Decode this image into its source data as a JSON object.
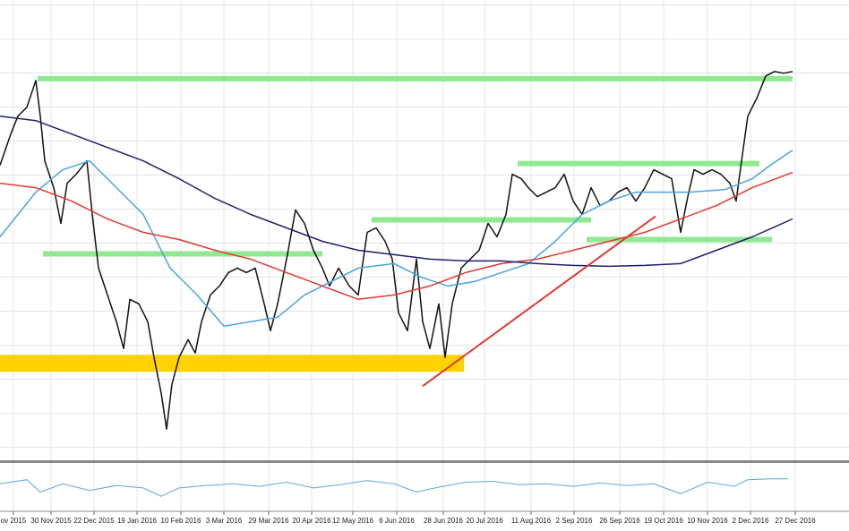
{
  "chart_data": {
    "type": "line",
    "xlim": [
      0,
      94.8
    ],
    "ylim": [
      0,
      103
    ],
    "grid": true,
    "xticks": [
      {
        "value": 1.5,
        "label": "ov 2015"
      },
      {
        "value": 5.7,
        "label": "30 Nov 2015"
      },
      {
        "value": 10.5,
        "label": "22 Dec 2015"
      },
      {
        "value": 15.3,
        "label": "19 Jan 2016"
      },
      {
        "value": 20.2,
        "label": "10 Feb 2016"
      },
      {
        "value": 25.0,
        "label": "3 Mar 2016"
      },
      {
        "value": 30.0,
        "label": "29 Mar 2016"
      },
      {
        "value": 34.8,
        "label": "20 Apr 2016"
      },
      {
        "value": 39.4,
        "label": "12 May 2016"
      },
      {
        "value": 44.3,
        "label": "6 Jun 2016"
      },
      {
        "value": 49.5,
        "label": "28 Jun 2016"
      },
      {
        "value": 54.1,
        "label": "20 Jul 2016"
      },
      {
        "value": 59.3,
        "label": "11 Aug 2016"
      },
      {
        "value": 64.1,
        "label": "2 Sep 2016"
      },
      {
        "value": 69.2,
        "label": "26 Sep 2016"
      },
      {
        "value": 74.1,
        "label": "19 Oct 2016"
      },
      {
        "value": 79.0,
        "label": "10 Nov 2016"
      },
      {
        "value": 83.8,
        "label": "2 Dec 2016"
      },
      {
        "value": 88.8,
        "label": "27 Dec 2016"
      }
    ],
    "series": [
      {
        "color": "#111111",
        "x": [
          0,
          1.2,
          2,
          3,
          4,
          4.5,
          5,
          6,
          6.8,
          7.5,
          8.5,
          9.7,
          10.3,
          11,
          12,
          13,
          13.8,
          14.5,
          15.5,
          16.5,
          17.2,
          18,
          18.6,
          19.2,
          20,
          21,
          21.8,
          22.5,
          23.5,
          24.5,
          25.5,
          26.5,
          27.5,
          28.5,
          29.5,
          30.2,
          31,
          32,
          33,
          34,
          35,
          36,
          36.8,
          37.8,
          39,
          40,
          41,
          42,
          43,
          43.8,
          44.5,
          45.5,
          46.5,
          47.2,
          48,
          49,
          49.7,
          50.5,
          51.5,
          52.5,
          53.5,
          54.5,
          55.5,
          56.5,
          57.2,
          58.2,
          59,
          60,
          61,
          62,
          63,
          64,
          65,
          66,
          67,
          68,
          69,
          70,
          71,
          72,
          73,
          74,
          75,
          76,
          76.8,
          77.5,
          78.5,
          79.5,
          80.5,
          81.5,
          82.2,
          82.8,
          83.5,
          84.5,
          85.5,
          86.5,
          87.5,
          88.5
        ],
        "values": [
          66,
          73,
          77,
          79,
          85,
          77,
          67,
          61,
          53,
          62,
          64,
          67,
          55,
          43,
          37,
          31,
          25,
          36,
          35,
          31,
          23,
          15,
          7,
          17,
          23,
          27,
          24,
          31,
          37,
          39,
          42,
          43,
          42,
          43,
          35,
          29,
          35,
          45,
          56,
          53,
          47,
          43,
          39,
          43,
          39,
          37,
          51,
          52,
          49,
          45,
          33,
          29,
          45,
          31,
          25,
          35,
          23,
          35,
          43,
          45,
          47,
          53,
          50,
          55,
          64,
          63,
          61,
          59,
          60,
          61,
          64,
          58,
          55,
          61,
          57,
          58,
          60,
          61,
          58,
          61,
          65,
          64,
          63,
          51,
          59,
          65,
          64,
          65,
          64,
          62,
          58,
          67,
          77,
          81,
          86,
          87,
          86.6,
          87
        ]
      },
      {
        "color": "#4aa3df",
        "x": [
          0,
          4,
          7,
          10,
          13,
          16,
          19,
          22,
          25,
          28,
          31,
          34,
          37,
          40,
          44,
          47,
          50,
          53,
          56,
          59,
          62,
          65,
          68,
          71,
          74,
          77,
          81,
          84,
          86,
          88.5
        ],
        "values": [
          50,
          60,
          65,
          67,
          61,
          55,
          43,
          37,
          30,
          31,
          32,
          37,
          40,
          43,
          44,
          41,
          39,
          40,
          42,
          44,
          49,
          55,
          58,
          60,
          60,
          60,
          60.6,
          63,
          66,
          69.4
        ]
      },
      {
        "color": "#e03a2f",
        "x": [
          0,
          4,
          8,
          12,
          16,
          20,
          24,
          28,
          32,
          36,
          40,
          44,
          48,
          52,
          56,
          60,
          64,
          68,
          72,
          76,
          80,
          84,
          88.5
        ],
        "values": [
          62,
          61,
          58,
          54,
          51,
          49.4,
          47,
          45,
          42,
          39,
          36,
          37,
          39,
          42,
          44,
          45,
          47,
          49,
          51,
          54,
          57,
          61,
          64.4
        ]
      },
      {
        "color": "#1f1f6e",
        "x": [
          0,
          4,
          8,
          12,
          16,
          20,
          24,
          28,
          32,
          36,
          40,
          44,
          48,
          52,
          56,
          60,
          64,
          68,
          72,
          76,
          80,
          84,
          88.5
        ],
        "values": [
          77,
          76,
          73,
          70,
          67,
          63,
          58.6,
          55,
          52,
          49,
          47,
          46,
          45,
          44.6,
          44.6,
          44,
          43.6,
          43.4,
          43.6,
          44,
          47,
          50,
          54
        ]
      }
    ],
    "levels": [
      {
        "x": [
          4.2,
          88.5
        ],
        "value": 85.4,
        "color": "#90e890"
      },
      {
        "x": [
          57.8,
          84.8
        ],
        "value": 66.4,
        "color": "#90e890"
      },
      {
        "x": [
          41.5,
          66
        ],
        "value": 53.8,
        "color": "#90e890"
      },
      {
        "x": [
          65.5,
          86.2
        ],
        "value": 49.4,
        "color": "#90e890"
      },
      {
        "x": [
          4.8,
          36
        ],
        "value": 46.2,
        "color": "#90e890"
      }
    ],
    "zones": [
      {
        "x": [
          0,
          51.8
        ],
        "y": [
          19.8,
          23.6
        ],
        "color": "#ffd200"
      }
    ],
    "trendlines": [
      {
        "x": [
          47.2,
          73.2
        ],
        "values": [
          16.6,
          54.6
        ],
        "color": "#e03a2f"
      }
    ],
    "indicator": {
      "ylim": [
        0,
        52
      ],
      "color": "#5aa8e0",
      "x": [
        0,
        3,
        4.5,
        7,
        10,
        13,
        16,
        18,
        20,
        23,
        26,
        29,
        32,
        35,
        38,
        41,
        44,
        46.5,
        49,
        52,
        55,
        58,
        61,
        64,
        67,
        70,
        73,
        76,
        79,
        82,
        83.5,
        86,
        88
      ],
      "values": [
        30,
        35,
        20,
        30,
        22,
        28,
        25,
        15,
        25,
        28,
        30,
        27,
        32,
        25,
        29,
        34,
        30,
        20,
        26,
        32,
        33,
        29,
        30,
        27,
        31,
        28,
        30,
        18,
        32,
        27,
        35,
        36,
        36
      ]
    }
  }
}
